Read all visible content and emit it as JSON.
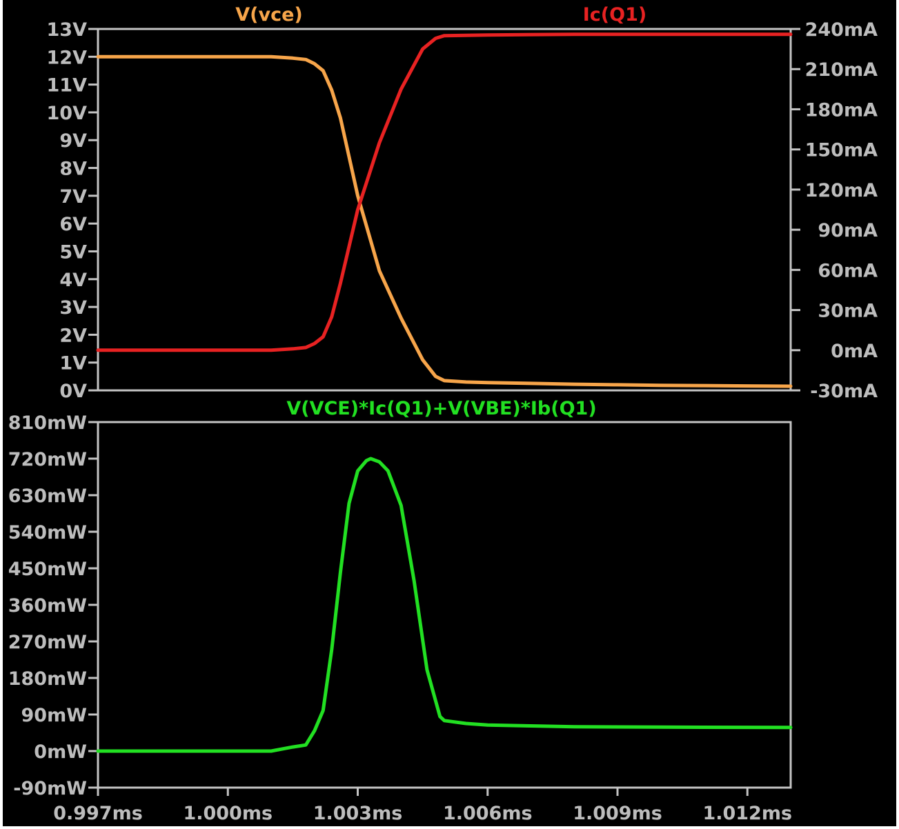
{
  "chart_data": [
    {
      "type": "line",
      "title": "",
      "x_unit": "ms",
      "xlim": [
        0.997,
        1.013
      ],
      "x_ticks": [
        "0.997ms",
        "1.000ms",
        "1.003ms",
        "1.006ms",
        "1.009ms",
        "1.012ms"
      ],
      "x_tick_values": [
        0.997,
        1.0,
        1.003,
        1.006,
        1.009,
        1.012
      ],
      "grid": false,
      "background": "#000000",
      "left_axis": {
        "ylim": [
          0,
          13
        ],
        "ticks": [
          "0V",
          "1V",
          "2V",
          "3V",
          "4V",
          "5V",
          "6V",
          "7V",
          "8V",
          "9V",
          "10V",
          "11V",
          "12V",
          "13V"
        ],
        "tick_values": [
          0,
          1,
          2,
          3,
          4,
          5,
          6,
          7,
          8,
          9,
          10,
          11,
          12,
          13
        ]
      },
      "right_axis": {
        "ylim": [
          -30,
          240
        ],
        "ticks": [
          "-30mA",
          "0mA",
          "30mA",
          "60mA",
          "90mA",
          "120mA",
          "150mA",
          "180mA",
          "210mA",
          "240mA"
        ],
        "tick_values": [
          -30,
          0,
          30,
          60,
          90,
          120,
          150,
          180,
          210,
          240
        ]
      },
      "series": [
        {
          "name": "V(vce)",
          "axis": "left",
          "color": "#f7a54a",
          "x": [
            0.997,
            1.0,
            1.001,
            1.0015,
            1.0018,
            1.002,
            1.0022,
            1.0024,
            1.0026,
            1.003,
            1.0035,
            1.004,
            1.0045,
            1.0048,
            1.005,
            1.0055,
            1.006,
            1.007,
            1.008,
            1.009,
            1.01,
            1.011,
            1.012,
            1.013
          ],
          "values": [
            12.0,
            12.0,
            12.0,
            11.95,
            11.9,
            11.75,
            11.5,
            10.8,
            9.8,
            7.0,
            4.3,
            2.6,
            1.1,
            0.5,
            0.35,
            0.3,
            0.28,
            0.25,
            0.22,
            0.2,
            0.18,
            0.17,
            0.16,
            0.15
          ]
        },
        {
          "name": "Ic(Q1)",
          "axis": "right",
          "color": "#e82222",
          "x": [
            0.997,
            1.0,
            1.001,
            1.0015,
            1.0018,
            1.002,
            1.0022,
            1.0024,
            1.0026,
            1.003,
            1.0035,
            1.004,
            1.0045,
            1.0048,
            1.005,
            1.006,
            1.008,
            1.01,
            1.013
          ],
          "values": [
            0,
            0,
            0,
            1,
            2,
            5,
            10,
            25,
            50,
            105,
            155,
            195,
            225,
            233,
            235,
            235.5,
            236,
            236,
            236
          ]
        }
      ]
    },
    {
      "type": "line",
      "title": "",
      "x_unit": "ms",
      "xlim": [
        0.997,
        1.013
      ],
      "x_ticks": [
        "0.997ms",
        "1.000ms",
        "1.003ms",
        "1.006ms",
        "1.009ms",
        "1.012ms"
      ],
      "x_tick_values": [
        0.997,
        1.0,
        1.003,
        1.006,
        1.009,
        1.012
      ],
      "grid": false,
      "background": "#000000",
      "left_axis": {
        "ylim": [
          -90,
          810
        ],
        "ticks": [
          "-90mW",
          "0mW",
          "90mW",
          "180mW",
          "270mW",
          "360mW",
          "450mW",
          "540mW",
          "630mW",
          "720mW",
          "810mW"
        ],
        "tick_values": [
          -90,
          0,
          90,
          180,
          270,
          360,
          450,
          540,
          630,
          720,
          810
        ]
      },
      "series": [
        {
          "name": "V(VCE)*Ic(Q1)+V(VBE)*Ib(Q1)",
          "axis": "left",
          "color": "#22e022",
          "x": [
            0.997,
            1.0,
            1.001,
            1.0015,
            1.0018,
            1.002,
            1.0022,
            1.0024,
            1.0026,
            1.0028,
            1.003,
            1.0032,
            1.0033,
            1.0035,
            1.0037,
            1.004,
            1.0043,
            1.0046,
            1.0049,
            1.005,
            1.0055,
            1.006,
            1.007,
            1.008,
            1.01,
            1.013
          ],
          "values": [
            0,
            0,
            0,
            10,
            15,
            50,
            100,
            250,
            440,
            610,
            690,
            715,
            720,
            712,
            690,
            605,
            420,
            200,
            85,
            75,
            68,
            64,
            62,
            60,
            59,
            58
          ]
        }
      ]
    }
  ]
}
